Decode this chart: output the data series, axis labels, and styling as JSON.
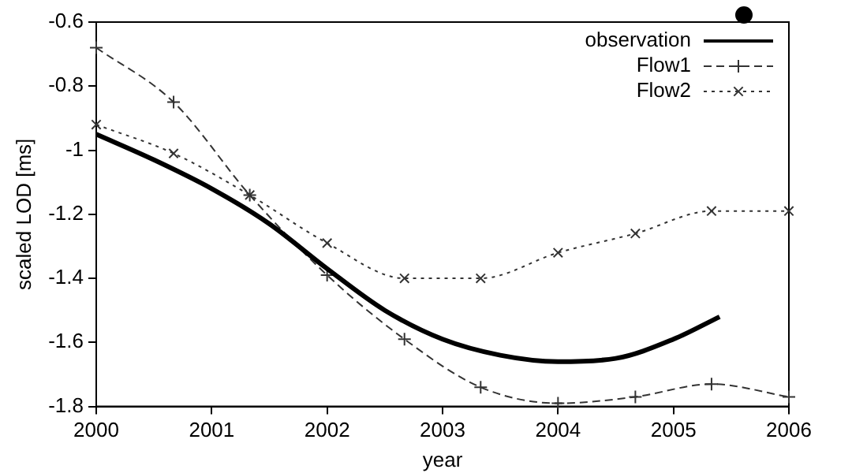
{
  "chart_data": {
    "type": "line",
    "xlabel": "year",
    "ylabel": "scaled LOD [ms]",
    "xlim": [
      2000,
      2006
    ],
    "xticks": [
      2000,
      2001,
      2002,
      2003,
      2004,
      2005,
      2006
    ],
    "ylim": [
      -1.8,
      -0.6
    ],
    "yticks": [
      -1.8,
      -1.6,
      -1.4,
      -1.2,
      -1,
      -0.8,
      -0.6
    ],
    "grid": false,
    "legend": "top right",
    "series": [
      {
        "name": "observation",
        "color": "#000000",
        "marker": "none",
        "line_style": "solid",
        "x": [
          2000,
          2000.5,
          2001,
          2001.5,
          2002,
          2002.5,
          2003,
          2003.5,
          2004,
          2004.5,
          2005,
          2005.4
        ],
        "values": [
          -0.95,
          -1.03,
          -1.12,
          -1.23,
          -1.37,
          -1.5,
          -1.59,
          -1.64,
          -1.66,
          -1.65,
          -1.59,
          -1.52
        ]
      },
      {
        "name": "Flow1",
        "color": "#333333",
        "marker": "cross",
        "line_style": "dashed",
        "x": [
          2000,
          2000.67,
          2001.33,
          2002,
          2002.67,
          2003.33,
          2004,
          2004.67,
          2005.33,
          2006
        ],
        "values": [
          -0.68,
          -0.85,
          -1.14,
          -1.39,
          -1.59,
          -1.74,
          -1.79,
          -1.77,
          -1.73,
          -1.77
        ]
      },
      {
        "name": "Flow2",
        "color": "#333333",
        "marker": "x",
        "line_style": "dotted",
        "x": [
          2000,
          2000.67,
          2001.33,
          2002,
          2002.67,
          2003.33,
          2004,
          2004.67,
          2005.33,
          2006
        ],
        "values": [
          -0.92,
          -1.01,
          -1.14,
          -1.29,
          -1.4,
          -1.4,
          -1.32,
          -1.26,
          -1.19,
          -1.19
        ]
      }
    ]
  }
}
